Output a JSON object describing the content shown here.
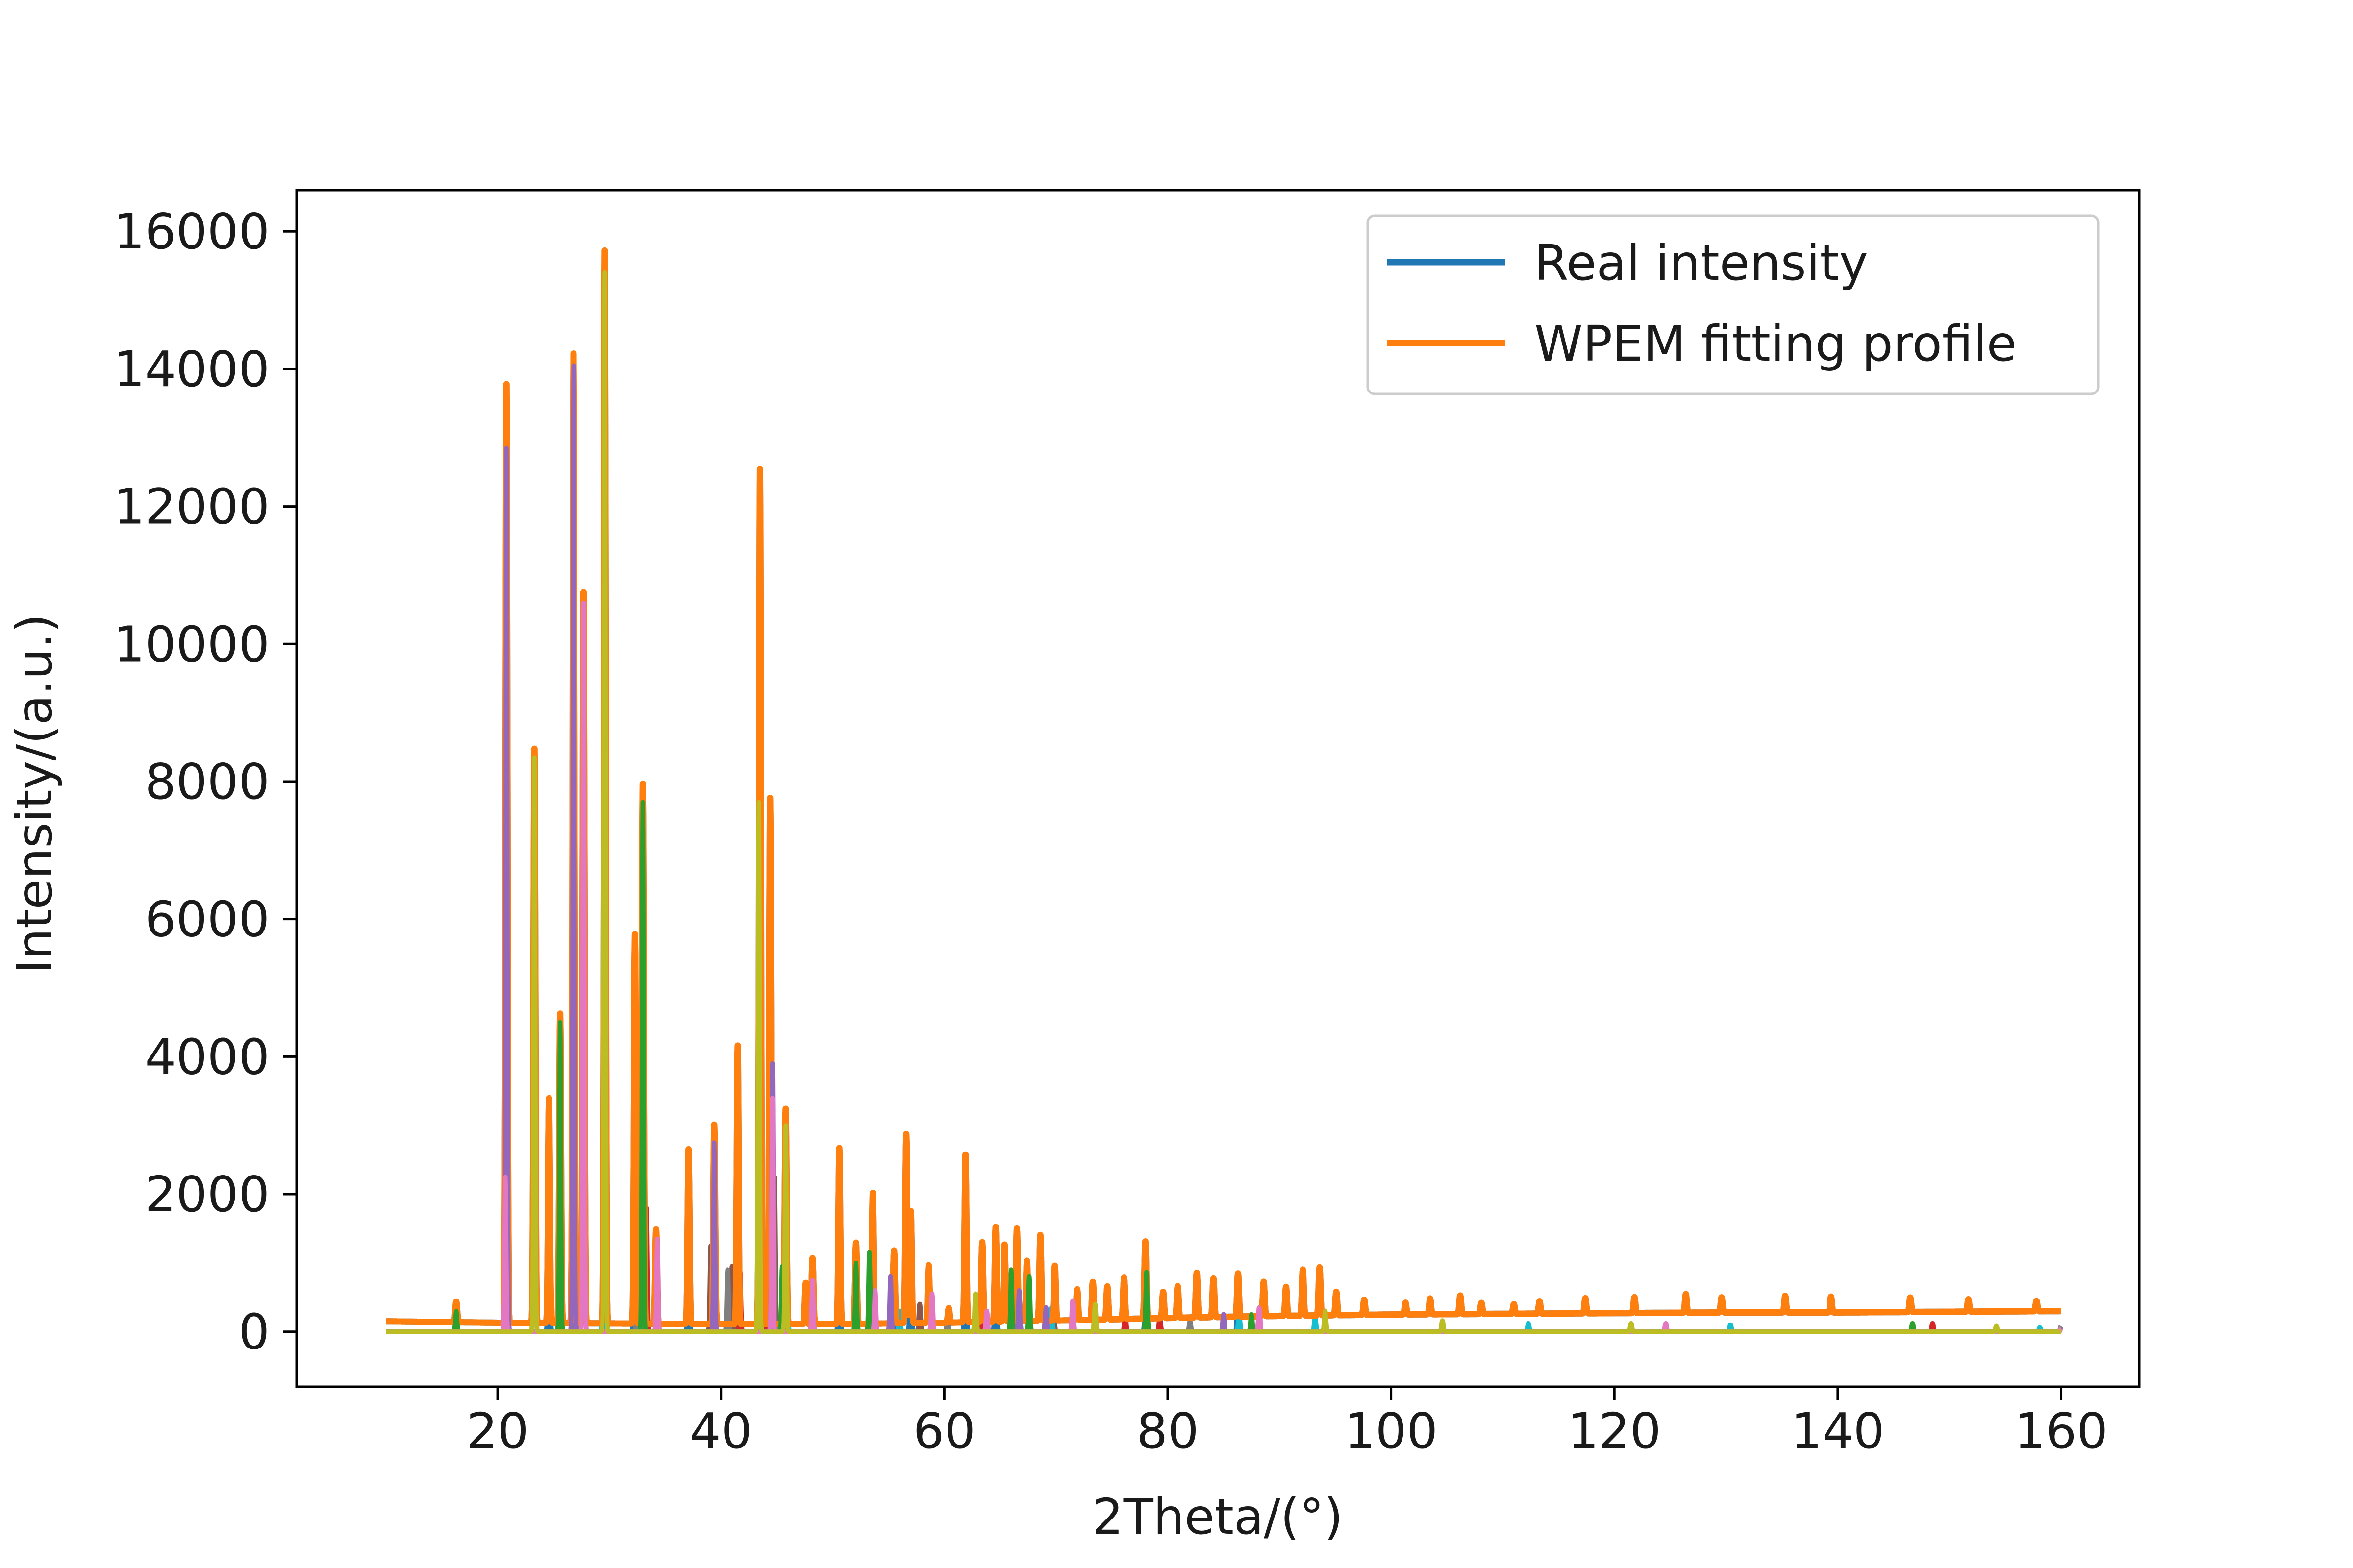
{
  "chart_data": {
    "type": "line",
    "title": "",
    "xlabel": "2Theta/(°)",
    "ylabel": "Intensity/(a.u.)",
    "xlim": [
      2,
      167
    ],
    "ylim": [
      -800,
      16600
    ],
    "xticks": [
      20,
      40,
      60,
      80,
      100,
      120,
      140,
      160
    ],
    "yticks": [
      0,
      2000,
      4000,
      6000,
      8000,
      10000,
      12000,
      14000,
      16000
    ],
    "grid": false,
    "legend": {
      "position": "top-right",
      "entries": [
        {
          "label": "Real intensity",
          "color": "#1f77b4"
        },
        {
          "label": "WPEM fitting profile",
          "color": "#ff7f0e"
        }
      ]
    },
    "x_range": [
      10,
      160
    ],
    "background": {
      "x": [
        10,
        20,
        30,
        40,
        50,
        60,
        70,
        80,
        90,
        100,
        110,
        120,
        130,
        140,
        150,
        160
      ],
      "y": [
        150,
        130,
        120,
        110,
        110,
        130,
        160,
        200,
        230,
        250,
        260,
        270,
        280,
        280,
        290,
        300
      ]
    },
    "series": [
      {
        "name": "Real intensity",
        "color": "#1f77b4",
        "role": "observed"
      },
      {
        "name": "WPEM fitting profile",
        "color": "#ff7f0e",
        "role": "fit"
      }
    ],
    "fit_peaks": {
      "x": [
        16.3,
        20.8,
        23.3,
        24.6,
        25.6,
        26.8,
        27.7,
        29.6,
        32.3,
        33.0,
        34.2,
        37.1,
        39.4,
        41.5,
        43.5,
        44.4,
        45.8,
        47.6,
        48.2,
        50.6,
        52.1,
        53.6,
        55.5,
        56.6,
        57.0,
        58.6,
        60.4,
        61.9,
        63.4,
        64.6,
        65.4,
        66.5,
        67.4,
        68.6,
        69.9,
        71.9,
        73.3,
        74.6,
        76.1,
        78.0,
        79.6,
        80.9,
        82.6,
        84.1,
        86.3,
        88.6,
        90.6,
        92.1,
        93.6,
        95.1,
        97.6,
        101.3,
        103.5,
        106.2,
        108.1,
        111.0,
        113.3,
        117.4,
        121.8,
        126.4,
        129.6,
        135.3,
        139.4,
        146.5,
        151.7,
        157.8
      ],
      "y": [
        300,
        13650,
        8350,
        3270,
        4500,
        14100,
        10630,
        15600,
        5660,
        7850,
        1370,
        2540,
        2900,
        4050,
        12430,
        7650,
        3130,
        600,
        960,
        2560,
        1180,
        1900,
        1060,
        2750,
        1630,
        840,
        210,
        2440,
        1160,
        1380,
        1120,
        1350,
        880,
        1250,
        800,
        450,
        550,
        480,
        600,
        1120,
        380,
        460,
        650,
        560,
        630,
        500,
        420,
        670,
        700,
        340,
        220,
        170,
        230,
        270,
        160,
        140,
        180,
        220,
        230,
        270,
        220,
        240,
        230,
        210,
        180,
        150
      ]
    },
    "phase_peaks": [
      {
        "color": "#1f77b4",
        "x": [
          24.6,
          32.3,
          37.1,
          41.5,
          43.5,
          50.6,
          55.5,
          57.0,
          61.9,
          64.6,
          78.0,
          86.3
        ],
        "y": [
          3300,
          5650,
          1860,
          3800,
          5500,
          2500,
          950,
          1250,
          2100,
          1270,
          300,
          600
        ]
      },
      {
        "color": "#2ca02c",
        "x": [
          16.3,
          25.6,
          33.0,
          45.5,
          52.1,
          53.3,
          66.0,
          67.6,
          78.1,
          87.5,
          146.7
        ],
        "y": [
          300,
          4500,
          7700,
          950,
          1000,
          1150,
          900,
          800,
          870,
          250,
          120
        ]
      },
      {
        "color": "#d62728",
        "x": [
          33.3,
          39.2,
          41.7,
          44.1,
          58.9,
          63.2,
          76.2,
          79.3,
          148.5
        ],
        "y": [
          1800,
          1250,
          900,
          650,
          450,
          350,
          250,
          200,
          120
        ]
      },
      {
        "color": "#9467bd",
        "x": [
          20.8,
          26.8,
          39.4,
          44.6,
          55.2,
          66.7,
          69.1,
          85.0
        ],
        "y": [
          12850,
          14050,
          2750,
          3900,
          800,
          600,
          350,
          250
        ]
      },
      {
        "color": "#8c564b",
        "x": [
          27.2,
          39.1,
          41.0,
          44.8,
          57.8,
          69.8
        ],
        "y": [
          550,
          1250,
          950,
          2250,
          400,
          250
        ]
      },
      {
        "color": "#e377c2",
        "x": [
          20.7,
          27.7,
          34.3,
          44.6,
          48.2,
          53.8,
          58.9,
          63.8,
          71.5,
          88.2,
          124.6,
          160.0
        ],
        "y": [
          2250,
          10600,
          1350,
          3400,
          750,
          600,
          550,
          300,
          450,
          350,
          120,
          50
        ]
      },
      {
        "color": "#7f7f7f",
        "x": [
          27.0,
          32.5,
          40.6,
          44.7,
          60.3,
          82.0,
          160.0
        ],
        "y": [
          400,
          350,
          900,
          2200,
          200,
          150,
          80
        ]
      },
      {
        "color": "#bcbd22",
        "x": [
          23.3,
          29.6,
          43.4,
          45.8,
          62.8,
          73.5,
          94.1,
          104.6,
          121.5,
          154.2
        ],
        "y": [
          8350,
          15400,
          7700,
          3000,
          550,
          400,
          300,
          160,
          120,
          80
        ]
      },
      {
        "color": "#17becf",
        "x": [
          29.5,
          32.9,
          45.9,
          56.0,
          69.6,
          86.4,
          93.2,
          112.3,
          130.4,
          158.1
        ],
        "y": [
          2400,
          450,
          1300,
          300,
          350,
          250,
          200,
          120,
          100,
          60
        ]
      }
    ]
  }
}
